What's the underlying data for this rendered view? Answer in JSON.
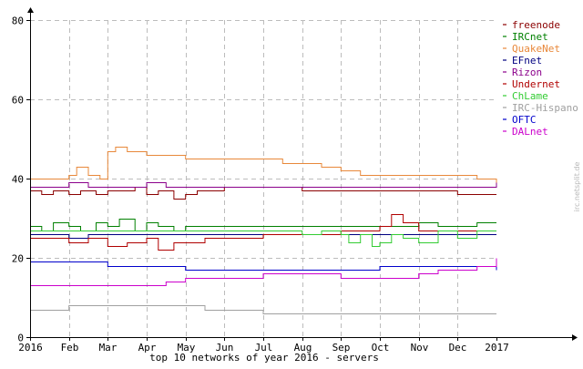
{
  "chart_data": {
    "type": "line",
    "title": "top 10 networks of year 2016 - servers",
    "xlabel": "",
    "ylabel": "",
    "x_tick_labels": [
      "2016",
      "Feb",
      "Mar",
      "Apr",
      "May",
      "Jun",
      "Jul",
      "Aug",
      "Sep",
      "Oct",
      "Nov",
      "Dec",
      "2017"
    ],
    "xlim": [
      0,
      12
    ],
    "y_ticks": [
      0,
      20,
      40,
      60,
      80
    ],
    "ylim": [
      0,
      80
    ],
    "grid": true,
    "legend_position": "top-right",
    "watermark": "irc.netsplit.de",
    "series": [
      {
        "name": "freenode",
        "color": "#8b0000",
        "x": [
          0,
          0.3,
          0.6,
          1,
          1.3,
          1.7,
          2.0,
          2.3,
          2.7,
          3,
          3.3,
          3.7,
          4,
          4.3,
          4.7,
          5,
          5.5,
          6,
          6.5,
          7,
          7.5,
          8,
          8.5,
          9,
          9.5,
          10,
          10.5,
          11,
          11.5,
          12
        ],
        "y": [
          37,
          36,
          37,
          36,
          37,
          36,
          37,
          37,
          38,
          36,
          37,
          35,
          36,
          37,
          37,
          38,
          38,
          38,
          38,
          37,
          37,
          37,
          37,
          37,
          37,
          37,
          37,
          36,
          36,
          36
        ]
      },
      {
        "name": "IRCnet",
        "color": "#008000",
        "x": [
          0,
          0.3,
          0.6,
          1,
          1.3,
          1.7,
          2,
          2.3,
          2.7,
          3,
          3.3,
          3.7,
          4,
          4.5,
          5,
          5.5,
          6,
          6.5,
          7,
          7.5,
          8,
          8.5,
          9,
          9.5,
          10,
          10.5,
          11,
          11.5,
          12
        ],
        "y": [
          28,
          27,
          29,
          28,
          27,
          29,
          28,
          30,
          27,
          29,
          28,
          27,
          28,
          28,
          28,
          28,
          28,
          28,
          28,
          28,
          28,
          28,
          28,
          28,
          29,
          28,
          28,
          29,
          29
        ]
      },
      {
        "name": "QuakeNet",
        "color": "#e8883a",
        "x": [
          0,
          0.5,
          1,
          1.2,
          1.5,
          1.8,
          2,
          2.2,
          2.5,
          3,
          3.5,
          4,
          4.5,
          5,
          5.5,
          6,
          6.5,
          7,
          7.5,
          8,
          8.5,
          9,
          9.5,
          10,
          10.5,
          11,
          11.5,
          12
        ],
        "y": [
          40,
          40,
          41,
          43,
          41,
          40,
          47,
          48,
          47,
          46,
          46,
          45,
          45,
          45,
          45,
          45,
          44,
          44,
          43,
          42,
          41,
          41,
          41,
          41,
          41,
          41,
          40,
          39
        ]
      },
      {
        "name": "EFnet",
        "color": "#000080",
        "x": [
          0,
          0.5,
          1,
          1.5,
          2,
          2.5,
          3,
          3.5,
          4,
          4.5,
          5,
          5.5,
          6,
          6.5,
          7,
          7.5,
          8,
          8.5,
          9,
          9.5,
          10,
          10.5,
          11,
          11.5,
          12
        ],
        "y": [
          26,
          26,
          25,
          26,
          26,
          26,
          26,
          26,
          26,
          26,
          26,
          26,
          26,
          26,
          26,
          26,
          26,
          26,
          26,
          26,
          26,
          26,
          26,
          26,
          26
        ]
      },
      {
        "name": "Rizon",
        "color": "#8b008b",
        "x": [
          0,
          0.5,
          1,
          1.5,
          2,
          2.5,
          3,
          3.5,
          4,
          4.5,
          5,
          5.5,
          6,
          6.5,
          7,
          7.5,
          8,
          8.5,
          9,
          9.5,
          10,
          10.5,
          11,
          11.5,
          12
        ],
        "y": [
          38,
          38,
          39,
          38,
          38,
          38,
          39,
          38,
          38,
          38,
          38,
          38,
          38,
          38,
          38,
          38,
          38,
          38,
          38,
          38,
          38,
          38,
          38,
          38,
          39
        ]
      },
      {
        "name": "Undernet",
        "color": "#b00000",
        "x": [
          0,
          0.5,
          1,
          1.5,
          2,
          2.5,
          3,
          3.3,
          3.7,
          4,
          4.5,
          5,
          5.5,
          6,
          6.5,
          7,
          7.5,
          8,
          8.5,
          9,
          9.3,
          9.6,
          10,
          10.5,
          11,
          11.5,
          12
        ],
        "y": [
          25,
          25,
          24,
          25,
          23,
          24,
          25,
          22,
          24,
          24,
          25,
          25,
          25,
          26,
          26,
          26,
          26,
          27,
          27,
          28,
          31,
          29,
          27,
          27,
          27,
          27,
          27
        ]
      },
      {
        "name": "ChLame",
        "color": "#33cc33",
        "x": [
          0,
          0.5,
          1,
          1.5,
          2,
          2.5,
          3,
          3.5,
          4,
          4.5,
          5,
          5.5,
          6,
          6.5,
          7,
          7.5,
          8,
          8.2,
          8.5,
          8.8,
          9,
          9.3,
          9.6,
          10,
          10.5,
          11,
          11.5,
          12
        ],
        "y": [
          27,
          27,
          27,
          27,
          27,
          27,
          27,
          27,
          27,
          27,
          27,
          27,
          27,
          27,
          26,
          27,
          26,
          24,
          26,
          23,
          24,
          26,
          25,
          24,
          27,
          25,
          27,
          27
        ]
      },
      {
        "name": "IRC-Hispano",
        "color": "#a0a0a0",
        "x": [
          0,
          0.5,
          1,
          1.5,
          2,
          2.5,
          3,
          3.5,
          4,
          4.5,
          5,
          5.5,
          6,
          6.5,
          7,
          7.5,
          8,
          8.5,
          9,
          9.5,
          10,
          10.5,
          11,
          11.5,
          12
        ],
        "y": [
          7,
          7,
          8,
          8,
          8,
          8,
          8,
          8,
          8,
          7,
          7,
          7,
          6,
          6,
          6,
          6,
          6,
          6,
          6,
          6,
          6,
          6,
          6,
          6,
          6
        ]
      },
      {
        "name": "OFTC",
        "color": "#0000cc",
        "x": [
          0,
          0.5,
          1,
          1.5,
          2,
          2.5,
          3,
          3.5,
          4,
          4.5,
          5,
          5.5,
          6,
          6.5,
          7,
          7.5,
          8,
          8.5,
          9,
          9.5,
          10,
          10.5,
          11,
          11.5,
          12
        ],
        "y": [
          19,
          19,
          19,
          19,
          18,
          18,
          18,
          18,
          17,
          17,
          17,
          17,
          17,
          17,
          17,
          17,
          17,
          17,
          18,
          18,
          18,
          18,
          18,
          18,
          17
        ]
      },
      {
        "name": "DALnet",
        "color": "#cc00cc",
        "x": [
          0,
          0.5,
          1,
          1.5,
          2,
          2.5,
          3,
          3.5,
          4,
          4.5,
          5,
          5.5,
          6,
          6.5,
          7,
          7.5,
          8,
          8.5,
          9,
          9.5,
          10,
          10.5,
          11,
          11.5,
          12
        ],
        "y": [
          13,
          13,
          13,
          13,
          13,
          13,
          13,
          14,
          15,
          15,
          15,
          15,
          16,
          16,
          16,
          16,
          15,
          15,
          15,
          15,
          16,
          17,
          17,
          18,
          20
        ]
      }
    ]
  }
}
